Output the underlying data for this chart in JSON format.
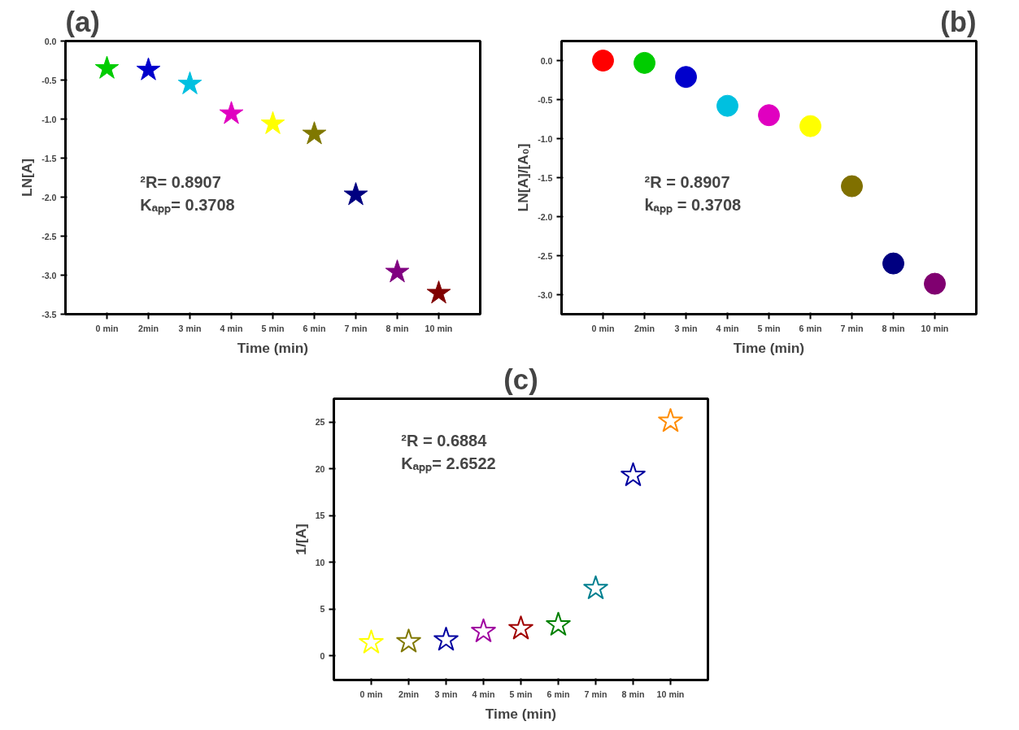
{
  "chart_data": [
    {
      "type": "scatter",
      "title": "(a)",
      "xlabel": "Time (min)",
      "ylabel": "LN[A]",
      "categories": [
        "0 min",
        "2min",
        "3 min",
        "4 min",
        "5 min",
        "6 min",
        "7 min",
        "8 min",
        "10 min"
      ],
      "values": [
        -0.35,
        -0.37,
        -0.55,
        -0.93,
        -1.06,
        -1.19,
        -1.97,
        -2.96,
        -3.23
      ],
      "colors": [
        "#00cc00",
        "#0000cc",
        "#00c0e0",
        "#e000c0",
        "#ffff00",
        "#807800",
        "#000080",
        "#800080",
        "#800000"
      ],
      "ylim": [
        -3.5,
        0.0
      ],
      "yticks": [
        {
          "value": -3.5,
          "label": "-3.5"
        },
        {
          "value": -3.0,
          "label": "-3.0"
        },
        {
          "value": -2.5,
          "label": "-2.5"
        },
        {
          "value": -2.0,
          "label": "-2.0"
        },
        {
          "value": -1.5,
          "label": "-1.5"
        },
        {
          "value": -1.0,
          "label": "-1.0"
        },
        {
          "value": -0.5,
          "label": "-0.5"
        },
        {
          "value": 0.0,
          "label": "0.0"
        }
      ],
      "marker": "star",
      "grid": false,
      "annotations": [
        "²R= 0.8907",
        "Kₐₚₚ= 0.3708"
      ]
    },
    {
      "type": "scatter",
      "title": "(b)",
      "xlabel": "Time (min)",
      "ylabel": "LN[A]/[A₀]",
      "categories": [
        "0 min",
        "2min",
        "3 min",
        "4 min",
        "5 min",
        "6 min",
        "7 min",
        "8 min",
        "10 min"
      ],
      "values": [
        0.0,
        -0.03,
        -0.21,
        -0.58,
        -0.7,
        -0.84,
        -1.61,
        -2.6,
        -2.86
      ],
      "colors": [
        "#ff0000",
        "#00cc00",
        "#0000cc",
        "#00c0e0",
        "#e000c0",
        "#ffff00",
        "#807000",
        "#000080",
        "#800070"
      ],
      "ylim": [
        -3.25,
        0.25
      ],
      "yticks": [
        {
          "value": -3.0,
          "label": "-3.0"
        },
        {
          "value": -2.5,
          "label": "-2.5"
        },
        {
          "value": -2.0,
          "label": "-2.0"
        },
        {
          "value": -1.5,
          "label": "-1.5"
        },
        {
          "value": -1.0,
          "label": "-1.0"
        },
        {
          "value": -0.5,
          "label": "-0.5"
        },
        {
          "value": 0.0,
          "label": "0.0"
        }
      ],
      "marker": "circle",
      "grid": false,
      "annotations": [
        "²R = 0.8907",
        "kₐₚₚ = 0.3708"
      ]
    },
    {
      "type": "scatter",
      "title": "(c)",
      "xlabel": "Time (min)",
      "ylabel": "1/[A]",
      "categories": [
        "0 min",
        "2min",
        "3 min",
        "4 min",
        "5 min",
        "6 min",
        "7 min",
        "8 min",
        "10 min"
      ],
      "values": [
        1.4,
        1.5,
        1.7,
        2.6,
        2.9,
        3.3,
        7.2,
        19.3,
        25.1
      ],
      "colors": [
        "#ffff00",
        "#807800",
        "#0000a0",
        "#a000a0",
        "#a00000",
        "#008000",
        "#008090",
        "#0000a0",
        "#ff8c00"
      ],
      "ylim": [
        -2.6,
        27.5
      ],
      "yticks": [
        0,
        5,
        10,
        15,
        20,
        25
      ],
      "marker": "star",
      "grid": false,
      "annotations": [
        "²R = 0.6884",
        "Kₐₚₚ= 2.6522"
      ]
    }
  ]
}
